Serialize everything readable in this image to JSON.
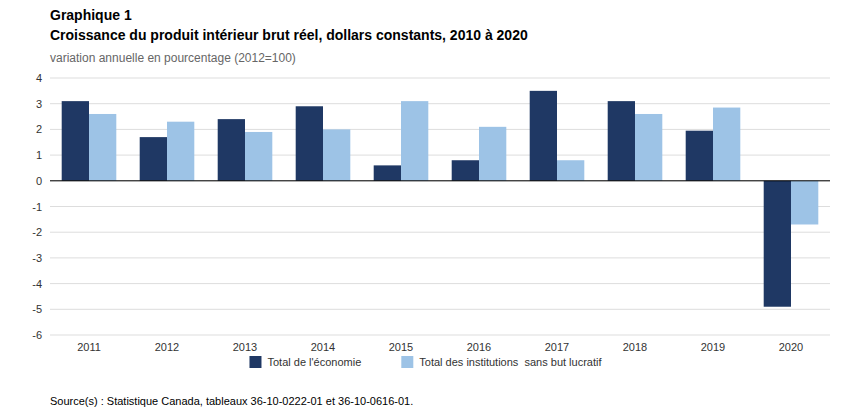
{
  "chart_data": {
    "type": "bar",
    "title": [
      "Graphique 1",
      "Croissance du produit intérieur brut réel, dollars constants, 2010 à 2020"
    ],
    "subtitle": "variation annuelle en pourcentage (2012=100)",
    "categories": [
      "2011",
      "2012",
      "2013",
      "2014",
      "2015",
      "2016",
      "2017",
      "2018",
      "2019",
      "2020"
    ],
    "series": [
      {
        "name": "Total de l'économie",
        "color": "#1F3864",
        "values": [
          3.1,
          1.7,
          2.4,
          2.9,
          0.6,
          0.8,
          3.5,
          3.1,
          1.95,
          -4.9
        ]
      },
      {
        "name": "Total des institutions  sans but lucratif",
        "color": "#9DC3E6",
        "values": [
          2.6,
          2.3,
          1.9,
          2.0,
          3.1,
          2.1,
          0.8,
          2.6,
          2.85,
          -1.7
        ]
      }
    ],
    "ylim": [
      -6,
      4
    ],
    "yticks": [
      -6,
      -5,
      -4,
      -3,
      -2,
      -1,
      0,
      1,
      2,
      3,
      4
    ],
    "grid": true,
    "legend": "bottom",
    "annotations": [
      "Source(s) : Statistique Canada, tableaux 36-10-0222-01 et 36-10-0616-01."
    ]
  }
}
